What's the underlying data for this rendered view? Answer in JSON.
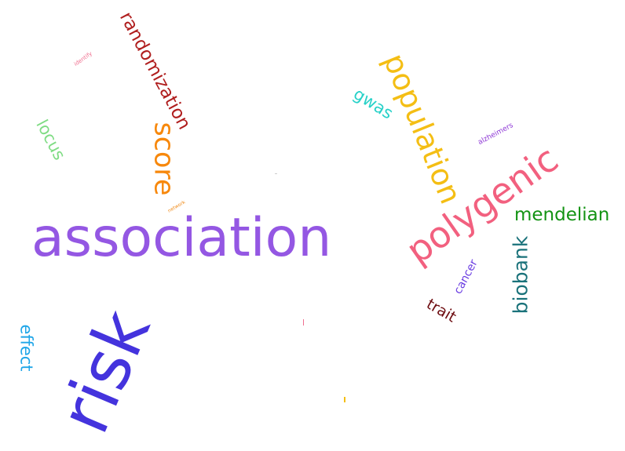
{
  "words": [
    {
      "text": "association",
      "color": "#9457e3"
    },
    {
      "text": "risk",
      "color": "#4433dd"
    },
    {
      "text": "polygenic",
      "color": "#f2607f"
    },
    {
      "text": "population",
      "color": "#f4be14"
    },
    {
      "text": "score",
      "color": "#f7880c"
    },
    {
      "text": "randomization",
      "color": "#b01e1e"
    },
    {
      "text": "biobank",
      "color": "#1a727a"
    },
    {
      "text": "mendelian",
      "color": "#139313"
    },
    {
      "text": "locus",
      "color": "#7fdc84"
    },
    {
      "text": "gwas",
      "color": "#27d1c8"
    },
    {
      "text": "effect",
      "color": "#20a6e8"
    },
    {
      "text": "trait",
      "color": "#6e0e12"
    },
    {
      "text": "cancer",
      "color": "#6a3ce2"
    },
    {
      "text": "alzheimers",
      "color": "#8e38d6"
    },
    {
      "text": "identify",
      "color": "#f06f8f"
    },
    {
      "text": "network",
      "color": "#f08b1a"
    }
  ],
  "marks": [
    {
      "color": "#f06f8f"
    },
    {
      "color": "#f4be14"
    },
    {
      "color": "#cccccc"
    }
  ]
}
